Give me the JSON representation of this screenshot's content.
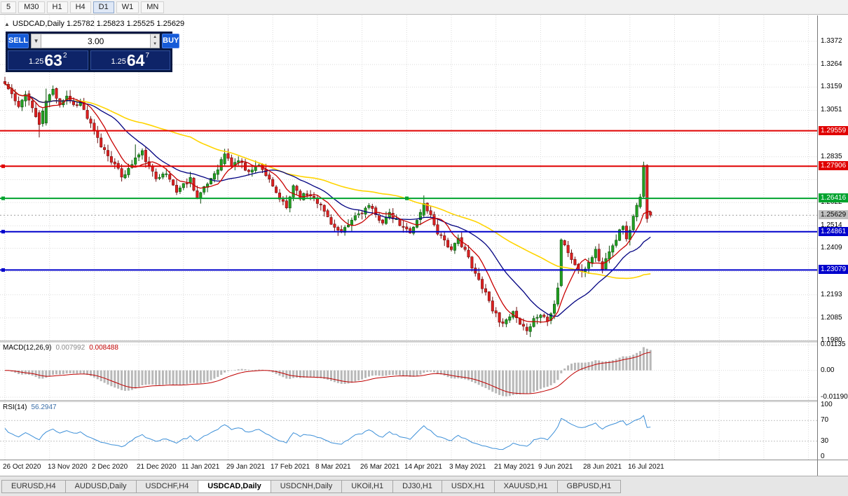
{
  "toolbar": {
    "timeframes": [
      {
        "label": "5",
        "active": false
      },
      {
        "label": "M30",
        "active": false
      },
      {
        "label": "H1",
        "active": false
      },
      {
        "label": "H4",
        "active": false
      },
      {
        "label": "D1",
        "active": true
      },
      {
        "label": "W1",
        "active": false
      },
      {
        "label": "MN",
        "active": false
      }
    ]
  },
  "chart_header": {
    "collapse_icon": "▲",
    "symbol": "USDCAD,Daily",
    "ohlc": "1.25782 1.25823 1.25525 1.25629"
  },
  "trade_panel": {
    "sell_label": "SELL",
    "buy_label": "BUY",
    "volume": "3.00",
    "volume_dropdown_icon": "▼",
    "spin_up_icon": "▲",
    "spin_down_icon": "▼",
    "sell_price": {
      "small": "1.25",
      "big": "63",
      "sup": "2"
    },
    "buy_price": {
      "small": "1.25",
      "big": "64",
      "sup": "7"
    }
  },
  "macd_panel": {
    "label": "MACD(12,26,9)",
    "main_value": "0.007992",
    "signal_value": "0.008488",
    "axis": [
      {
        "text": "0.01135",
        "value": 0.01135
      },
      {
        "text": "0.00",
        "value": 0
      },
      {
        "text": "-0.01190",
        "value": -0.0119
      }
    ]
  },
  "rsi_panel": {
    "label": "RSI(14)",
    "value": "56.2947",
    "axis": [
      {
        "text": "100",
        "value": 100
      },
      {
        "text": "70",
        "value": 70
      },
      {
        "text": "30",
        "value": 30
      },
      {
        "text": "0",
        "value": 0
      }
    ],
    "levels": [
      70,
      30
    ]
  },
  "price_axis": {
    "plain_labels": [
      {
        "text": "1.3372",
        "price": 1.3372
      },
      {
        "text": "1.3264",
        "price": 1.3264
      },
      {
        "text": "1.3159",
        "price": 1.3159
      },
      {
        "text": "1.3051",
        "price": 1.3051
      },
      {
        "text": "1.2835",
        "price": 1.2835
      },
      {
        "text": "1.2622",
        "price": 1.2622
      },
      {
        "text": "1.2514",
        "price": 1.2514
      },
      {
        "text": "1.2409",
        "price": 1.2409
      },
      {
        "text": "1.2193",
        "price": 1.2193
      },
      {
        "text": "1.2085",
        "price": 1.2085
      },
      {
        "text": "1.1980",
        "price": 1.198
      }
    ],
    "badges": [
      {
        "text": "1.29559",
        "price": 1.29559,
        "bg": "#e00000",
        "fg": "#ffffff",
        "line": "solid",
        "width": 2,
        "handles": []
      },
      {
        "text": "1.27906",
        "price": 1.27906,
        "bg": "#e00000",
        "fg": "#ffffff",
        "line": "solid",
        "width": 2,
        "handles": [
          "left"
        ]
      },
      {
        "text": "1.26416",
        "price": 1.26416,
        "bg": "#00a32e",
        "fg": "#ffffff",
        "line": "solid",
        "width": 2,
        "handles": [
          "left",
          "center"
        ]
      },
      {
        "text": "1.25629",
        "price": 1.25629,
        "bg": "#c0c0c0",
        "fg": "#000000",
        "line": "dotted",
        "width": 1,
        "handles": []
      },
      {
        "text": "1.24861",
        "price": 1.24861,
        "bg": "#0000cc",
        "fg": "#ffffff",
        "line": "solid",
        "width": 2,
        "handles": [
          "left"
        ]
      },
      {
        "text": "1.23079",
        "price": 1.23079,
        "bg": "#0000cc",
        "fg": "#ffffff",
        "line": "solid",
        "width": 2,
        "handles": [
          "left"
        ]
      }
    ]
  },
  "date_axis": {
    "labels": [
      "26 Oct 2020",
      "13 Nov 2020",
      "2 Dec 2020",
      "21 Dec 2020",
      "11 Jan 2021",
      "29 Jan 2021",
      "17 Feb 2021",
      "8 Mar 2021",
      "26 Mar 2021",
      "14 Apr 2021",
      "3 May 2021",
      "21 May 2021",
      "9 Jun 2021",
      "28 Jun 2021",
      "16 Jul 2021"
    ],
    "label_step": 13
  },
  "tabs": [
    {
      "label": "EURUSD,H4",
      "active": false
    },
    {
      "label": "AUDUSD,Daily",
      "active": false
    },
    {
      "label": "USDCHF,H4",
      "active": false
    },
    {
      "label": "USDCAD,Daily",
      "active": true
    },
    {
      "label": "USDCNH,Daily",
      "active": false
    },
    {
      "label": "UKOil,H1",
      "active": false
    },
    {
      "label": "DJ30,H1",
      "active": false
    },
    {
      "label": "USDX,H1",
      "active": false
    },
    {
      "label": "XAUUSD,H1",
      "active": false
    },
    {
      "label": "GBPUSD,H1",
      "active": false
    }
  ],
  "chart_data": {
    "type": "candlestick",
    "symbol": "USDCAD",
    "timeframe": "Daily",
    "current": {
      "open": 1.25782,
      "high": 1.25823,
      "low": 1.25525,
      "close": 1.25629
    },
    "bid": 1.25629,
    "candle_count": 189,
    "seed": 11,
    "noise": 0.0024,
    "wick": 0.0026,
    "close_anchors": [
      [
        0,
        1.3175
      ],
      [
        2,
        1.3125
      ],
      [
        4,
        1.306
      ],
      [
        6,
        1.3135
      ],
      [
        8,
        1.306
      ],
      [
        10,
        1.2985
      ],
      [
        12,
        1.3095
      ],
      [
        14,
        1.3145
      ],
      [
        16,
        1.3085
      ],
      [
        18,
        1.312
      ],
      [
        20,
        1.3075
      ],
      [
        22,
        1.309
      ],
      [
        24,
        1.3015
      ],
      [
        26,
        1.295
      ],
      [
        28,
        1.2885
      ],
      [
        30,
        1.2845
      ],
      [
        32,
        1.2795
      ],
      [
        34,
        1.2745
      ],
      [
        36,
        1.2775
      ],
      [
        38,
        1.283
      ],
      [
        40,
        1.2855
      ],
      [
        42,
        1.2785
      ],
      [
        44,
        1.2735
      ],
      [
        46,
        1.2765
      ],
      [
        48,
        1.273
      ],
      [
        50,
        1.2675
      ],
      [
        52,
        1.2705
      ],
      [
        54,
        1.2735
      ],
      [
        56,
        1.2645
      ],
      [
        58,
        1.2685
      ],
      [
        60,
        1.2735
      ],
      [
        62,
        1.2785
      ],
      [
        64,
        1.2848
      ],
      [
        66,
        1.2795
      ],
      [
        68,
        1.282
      ],
      [
        70,
        1.278
      ],
      [
        72,
        1.277
      ],
      [
        74,
        1.2805
      ],
      [
        76,
        1.275
      ],
      [
        78,
        1.269
      ],
      [
        80,
        1.264
      ],
      [
        82,
        1.2595
      ],
      [
        84,
        1.2705
      ],
      [
        86,
        1.265
      ],
      [
        88,
        1.266
      ],
      [
        90,
        1.265
      ],
      [
        92,
        1.2605
      ],
      [
        94,
        1.2555
      ],
      [
        96,
        1.2505
      ],
      [
        98,
        1.2475
      ],
      [
        100,
        1.2515
      ],
      [
        102,
        1.256
      ],
      [
        104,
        1.258
      ],
      [
        106,
        1.2605
      ],
      [
        108,
        1.256
      ],
      [
        110,
        1.2535
      ],
      [
        112,
        1.2565
      ],
      [
        114,
        1.2535
      ],
      [
        116,
        1.25
      ],
      [
        118,
        1.249
      ],
      [
        120,
        1.2535
      ],
      [
        122,
        1.2618
      ],
      [
        124,
        1.256
      ],
      [
        126,
        1.2485
      ],
      [
        128,
        1.245
      ],
      [
        130,
        1.2395
      ],
      [
        132,
        1.245
      ],
      [
        134,
        1.2405
      ],
      [
        136,
        1.2315
      ],
      [
        138,
        1.226
      ],
      [
        140,
        1.2205
      ],
      [
        142,
        1.2125
      ],
      [
        144,
        1.2075
      ],
      [
        146,
        1.2065
      ],
      [
        148,
        1.211
      ],
      [
        150,
        1.2045
      ],
      [
        152,
        1.2025
      ],
      [
        154,
        1.208
      ],
      [
        156,
        1.21
      ],
      [
        158,
        1.208
      ],
      [
        160,
        1.215
      ],
      [
        161,
        1.223
      ],
      [
        162,
        1.2448
      ],
      [
        164,
        1.239
      ],
      [
        166,
        1.233
      ],
      [
        168,
        1.229
      ],
      [
        170,
        1.2345
      ],
      [
        172,
        1.24
      ],
      [
        174,
        1.231
      ],
      [
        176,
        1.2405
      ],
      [
        178,
        1.2455
      ],
      [
        180,
        1.252
      ],
      [
        181,
        1.2445
      ],
      [
        183,
        1.2555
      ],
      [
        185,
        1.2648
      ],
      [
        186,
        1.2795
      ],
      [
        187,
        1.2547
      ],
      [
        188,
        1.25629
      ]
    ],
    "explicit": {
      "10": [
        1.304,
        1.3052,
        1.2925,
        1.2985
      ],
      "12": [
        1.2992,
        1.3152,
        1.298,
        1.3095
      ],
      "38": [
        1.28,
        1.2892,
        1.2792,
        1.283
      ],
      "64": [
        1.2802,
        1.2872,
        1.2794,
        1.2848
      ],
      "122": [
        1.2562,
        1.2655,
        1.2552,
        1.2618
      ],
      "152": [
        1.2042,
        1.206,
        1.2006,
        1.2025
      ],
      "162": [
        1.2235,
        1.2455,
        1.2228,
        1.2448
      ],
      "185": [
        1.2602,
        1.2662,
        1.2594,
        1.2648
      ],
      "186": [
        1.265,
        1.2812,
        1.264,
        1.2795
      ],
      "187": [
        1.2795,
        1.28,
        1.2528,
        1.2547
      ],
      "188": [
        1.25782,
        1.25823,
        1.25525,
        1.25629
      ]
    },
    "grid_prices": [
      1.3372,
      1.3264,
      1.3159,
      1.3051,
      1.2943,
      1.2835,
      1.2728,
      1.2622,
      1.2514,
      1.2409,
      1.2301,
      1.2193,
      1.2085,
      1.198
    ],
    "ma": [
      {
        "period": 55,
        "color": "#ffd400",
        "width": 1.6
      },
      {
        "period": 21,
        "color": "#000080",
        "width": 1.3
      },
      {
        "period": 8,
        "color": "#c80000",
        "width": 1.3
      }
    ],
    "macd": {
      "fast": 12,
      "slow": 26,
      "signal": 9,
      "hist_color": "#b8b8b8",
      "line_color": "#c00000"
    },
    "rsi": {
      "period": 14,
      "color": "#3c8fd8"
    },
    "colors": {
      "up": "#21a121",
      "up_border": "#0b4d0b",
      "down": "#de2020",
      "down_border": "#6b0f0f",
      "grid": "#dadada",
      "bid_line": "#9e9e9e"
    }
  }
}
